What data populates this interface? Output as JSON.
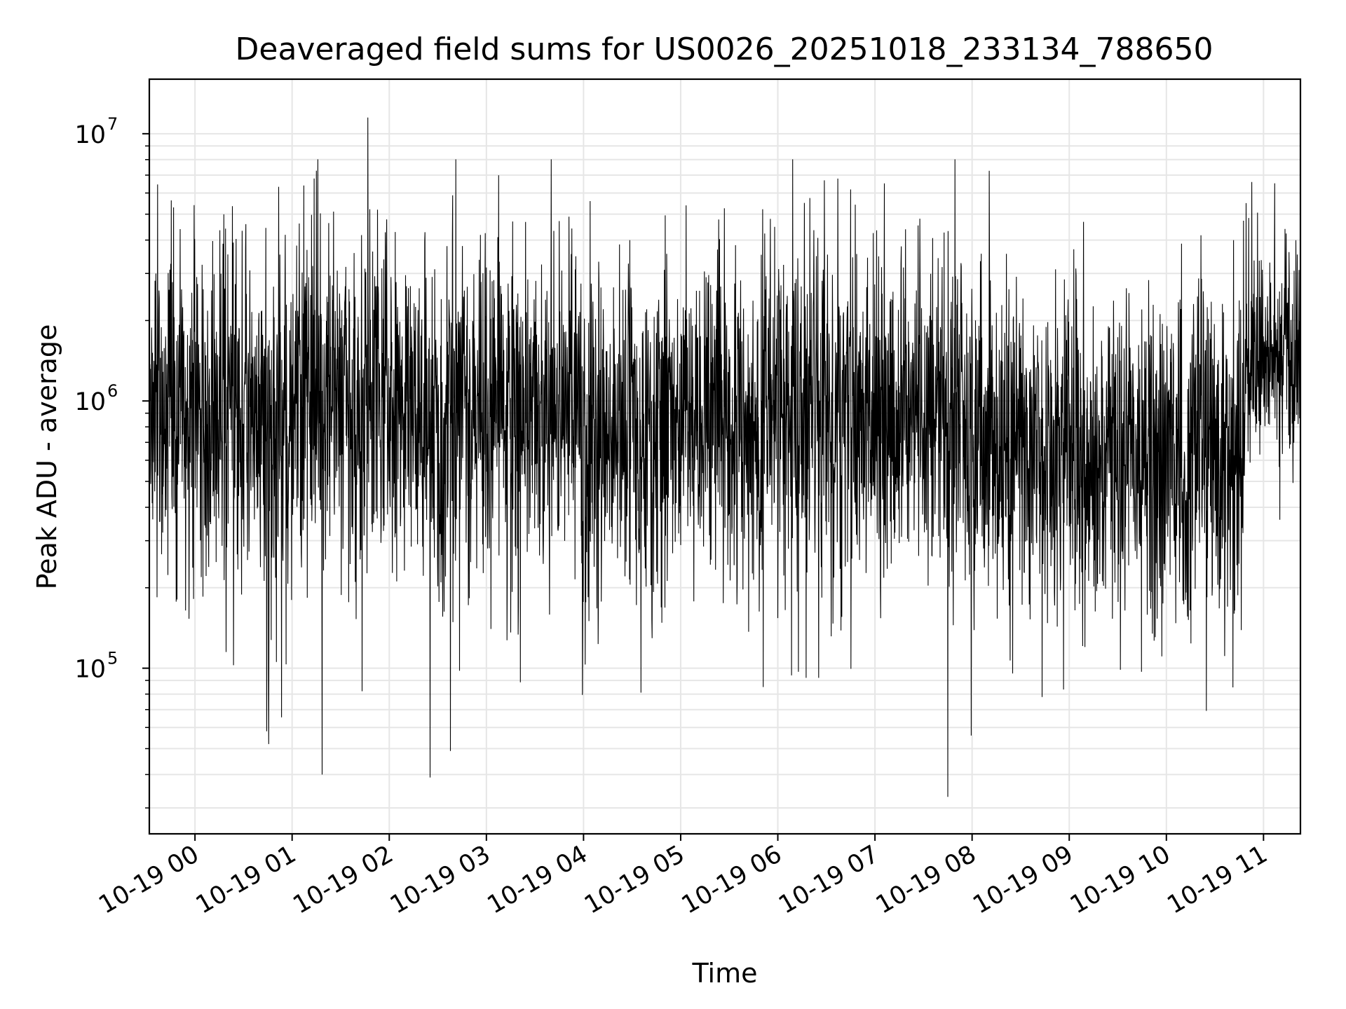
{
  "chart_data": {
    "type": "line",
    "title": "Deaveraged field sums for US0026_20251018_233134_788650",
    "xlabel": "Time",
    "ylabel": "Peak ADU - average",
    "y_scale": "log",
    "ylim": [
      24000,
      16000000
    ],
    "x_unit": "hours since 2025-10-19 00:00",
    "xlim": [
      -0.47,
      11.38
    ],
    "grid": true,
    "line_color": "#000000",
    "grid_color": "#e6e6e6",
    "x_ticks": [
      {
        "value": 0,
        "label": "10-19 00"
      },
      {
        "value": 1,
        "label": "10-19 01"
      },
      {
        "value": 2,
        "label": "10-19 02"
      },
      {
        "value": 3,
        "label": "10-19 03"
      },
      {
        "value": 4,
        "label": "10-19 04"
      },
      {
        "value": 5,
        "label": "10-19 05"
      },
      {
        "value": 6,
        "label": "10-19 06"
      },
      {
        "value": 7,
        "label": "10-19 07"
      },
      {
        "value": 8,
        "label": "10-19 08"
      },
      {
        "value": 9,
        "label": "10-19 09"
      },
      {
        "value": 10,
        "label": "10-19 10"
      },
      {
        "value": 11,
        "label": "10-19 11"
      }
    ],
    "y_ticks": [
      {
        "value": 100000,
        "base": "10",
        "exp": "5"
      },
      {
        "value": 1000000,
        "base": "10",
        "exp": "6"
      },
      {
        "value": 10000000,
        "base": "10",
        "exp": "7"
      }
    ],
    "series": [
      {
        "name": "Deaveraged field sum",
        "segments": [
          {
            "start": -0.47,
            "end": 0.0,
            "median": 900000,
            "spread": 0.65
          },
          {
            "start": 0.0,
            "end": 1.0,
            "median": 850000,
            "spread": 0.75
          },
          {
            "start": 1.0,
            "end": 2.0,
            "median": 1000000,
            "spread": 0.75
          },
          {
            "start": 2.0,
            "end": 3.0,
            "median": 900000,
            "spread": 0.75
          },
          {
            "start": 3.0,
            "end": 4.0,
            "median": 850000,
            "spread": 0.75
          },
          {
            "start": 4.0,
            "end": 5.0,
            "median": 750000,
            "spread": 0.7
          },
          {
            "start": 5.0,
            "end": 6.0,
            "median": 850000,
            "spread": 0.7
          },
          {
            "start": 6.0,
            "end": 7.0,
            "median": 900000,
            "spread": 0.7
          },
          {
            "start": 7.0,
            "end": 8.0,
            "median": 900000,
            "spread": 0.7
          },
          {
            "start": 8.0,
            "end": 9.0,
            "median": 650000,
            "spread": 0.7
          },
          {
            "start": 9.0,
            "end": 10.0,
            "median": 650000,
            "spread": 0.7
          },
          {
            "start": 10.0,
            "end": 10.8,
            "median": 650000,
            "spread": 0.7
          },
          {
            "start": 10.8,
            "end": 11.38,
            "median": 1400000,
            "spread": 0.5
          }
        ],
        "extremes": [
          {
            "t": -0.22,
            "y": 5300000
          },
          {
            "t": 0.52,
            "y": 3700000
          },
          {
            "t": 0.76,
            "y": 52000
          },
          {
            "t": 0.32,
            "y": 115000
          },
          {
            "t": 1.31,
            "y": 40000
          },
          {
            "t": 1.72,
            "y": 82000
          },
          {
            "t": 1.78,
            "y": 11500000
          },
          {
            "t": 1.88,
            "y": 5200000
          },
          {
            "t": 2.42,
            "y": 39000
          },
          {
            "t": 2.63,
            "y": 49000
          },
          {
            "t": 4.59,
            "y": 81000
          },
          {
            "t": 5.85,
            "y": 85000
          },
          {
            "t": 6.14,
            "y": 94000
          },
          {
            "t": 6.29,
            "y": 92000
          },
          {
            "t": 6.42,
            "y": 92000
          },
          {
            "t": 7.75,
            "y": 33000
          },
          {
            "t": 7.99,
            "y": 56000
          },
          {
            "t": 8.72,
            "y": 78000
          },
          {
            "t": 10.6,
            "y": 111000
          },
          {
            "t": 10.88,
            "y": 6600000
          },
          {
            "t": 10.82,
            "y": 5500000
          },
          {
            "t": 11.22,
            "y": 4400000
          }
        ]
      }
    ]
  }
}
